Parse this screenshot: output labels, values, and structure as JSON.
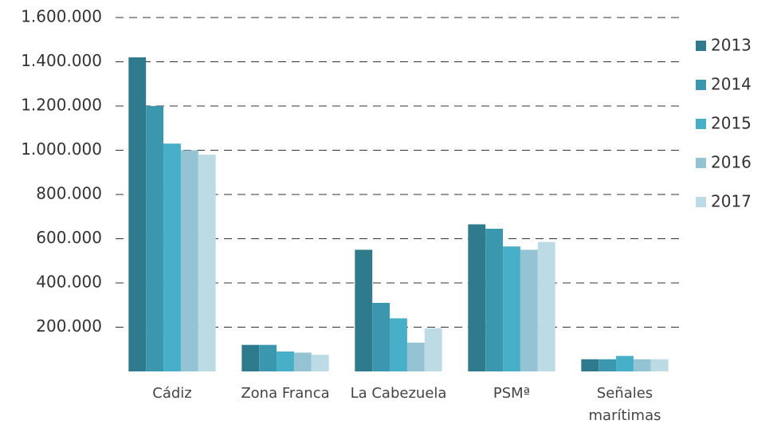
{
  "chart_data": {
    "type": "bar",
    "categories": [
      "Cádiz",
      "Zona Franca",
      "La Cabezuela",
      "PSMª",
      "Señales marítimas"
    ],
    "series": [
      {
        "name": "2013",
        "color": "#2f7b8d",
        "values": [
          1420000,
          120000,
          550000,
          665000,
          55000
        ]
      },
      {
        "name": "2014",
        "color": "#3b97ae",
        "values": [
          1200000,
          120000,
          310000,
          645000,
          55000
        ]
      },
      {
        "name": "2015",
        "color": "#47afc8",
        "values": [
          1030000,
          90000,
          240000,
          565000,
          70000
        ]
      },
      {
        "name": "2016",
        "color": "#94c4d3",
        "values": [
          1000000,
          85000,
          130000,
          550000,
          55000
        ]
      },
      {
        "name": "2017",
        "color": "#bddbe5",
        "values": [
          980000,
          75000,
          195000,
          585000,
          55000
        ]
      }
    ],
    "ylim": [
      0,
      1600000
    ],
    "yticks": [
      {
        "value": 200000,
        "label": "200.000"
      },
      {
        "value": 400000,
        "label": "400.000"
      },
      {
        "value": 600000,
        "label": "600.000"
      },
      {
        "value": 800000,
        "label": "800.000"
      },
      {
        "value": 1000000,
        "label": "1.000.000"
      },
      {
        "value": 1200000,
        "label": "1.200.000"
      },
      {
        "value": 1400000,
        "label": "1.400.000"
      },
      {
        "value": 1600000,
        "label": "1.600.000"
      }
    ],
    "grid": true,
    "legend": "right"
  }
}
